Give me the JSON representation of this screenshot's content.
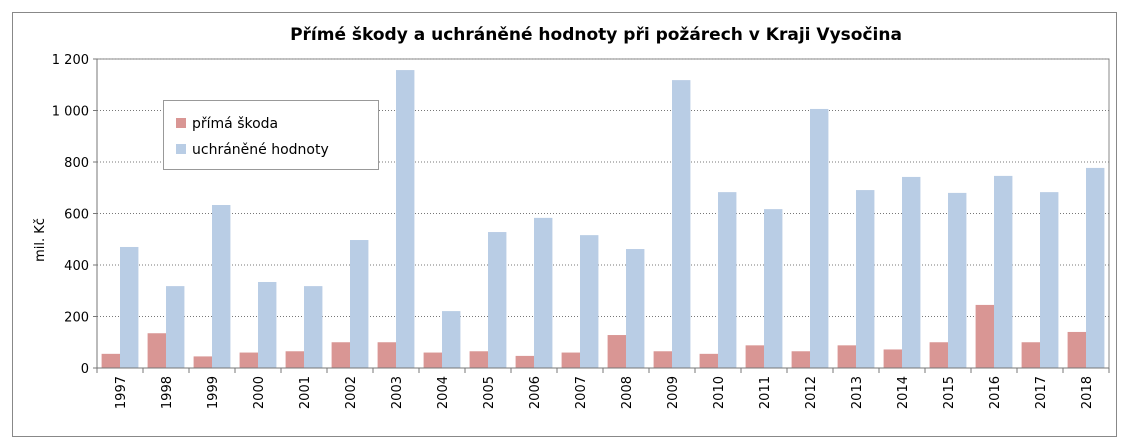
{
  "chart_data": {
    "type": "bar",
    "title": "Přímé škody a uchráněné hodnoty při požárech v Kraji Vysočina",
    "y_label": "mil. Kč",
    "categories": [
      "1997",
      "1998",
      "1999",
      "2000",
      "2001",
      "2002",
      "2003",
      "2004",
      "2005",
      "2006",
      "2007",
      "2008",
      "2009",
      "2010",
      "2011",
      "2012",
      "2013",
      "2014",
      "2015",
      "2016",
      "2017",
      "2018"
    ],
    "series": [
      {
        "name": "přímá škoda",
        "color": "#d99694",
        "values": [
          55,
          135,
          45,
          60,
          65,
          100,
          100,
          60,
          65,
          47,
          60,
          128,
          65,
          55,
          88,
          65,
          88,
          72,
          100,
          245,
          100,
          140
        ]
      },
      {
        "name": "uchráněné hodnoty",
        "color": "#b9cde5",
        "values": [
          470,
          318,
          633,
          334,
          318,
          497,
          1157,
          221,
          528,
          583,
          516,
          462,
          1118,
          683,
          617,
          1006,
          691,
          742,
          680,
          746,
          683,
          777
        ]
      }
    ],
    "ylim": [
      0,
      1200
    ],
    "yticks": [
      0,
      200,
      400,
      600,
      800,
      {
        "value": 1000,
        "label": "1 000"
      },
      {
        "value": 1200,
        "label": "1 200"
      }
    ],
    "grid": true,
    "legend": "upper left"
  }
}
